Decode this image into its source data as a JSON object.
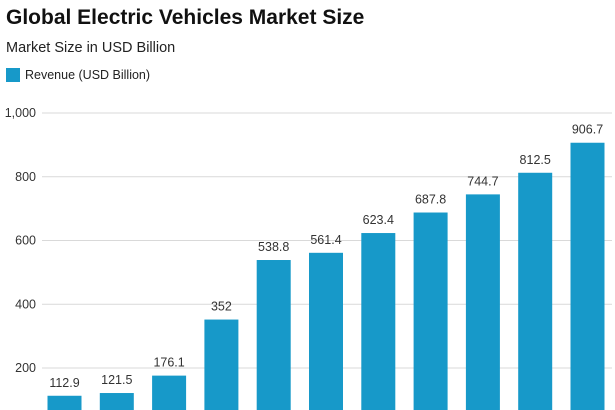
{
  "chart_data": {
    "type": "bar",
    "title": "Global Electric Vehicles Market Size",
    "subtitle": "Market Size in USD Billion",
    "legend": "top-left",
    "series": [
      {
        "name": "Revenue (USD Billion)",
        "values": [
          112.9,
          121.5,
          176.1,
          352,
          538.8,
          561.4,
          623.4,
          687.8,
          744.7,
          812.5,
          906.7
        ]
      }
    ],
    "data_labels": [
      "112.9",
      "121.5",
      "176.1",
      "352",
      "538.8",
      "561.4",
      "623.4",
      "687.8",
      "744.7",
      "812.5",
      "906.7"
    ],
    "y_ticks": [
      200,
      400,
      600,
      800,
      1000
    ],
    "y_tick_labels": [
      "200",
      "400",
      "600",
      "800",
      "1,000"
    ],
    "ylim": [
      0,
      1000
    ],
    "grid": true,
    "bar_color": "#1799c9"
  }
}
